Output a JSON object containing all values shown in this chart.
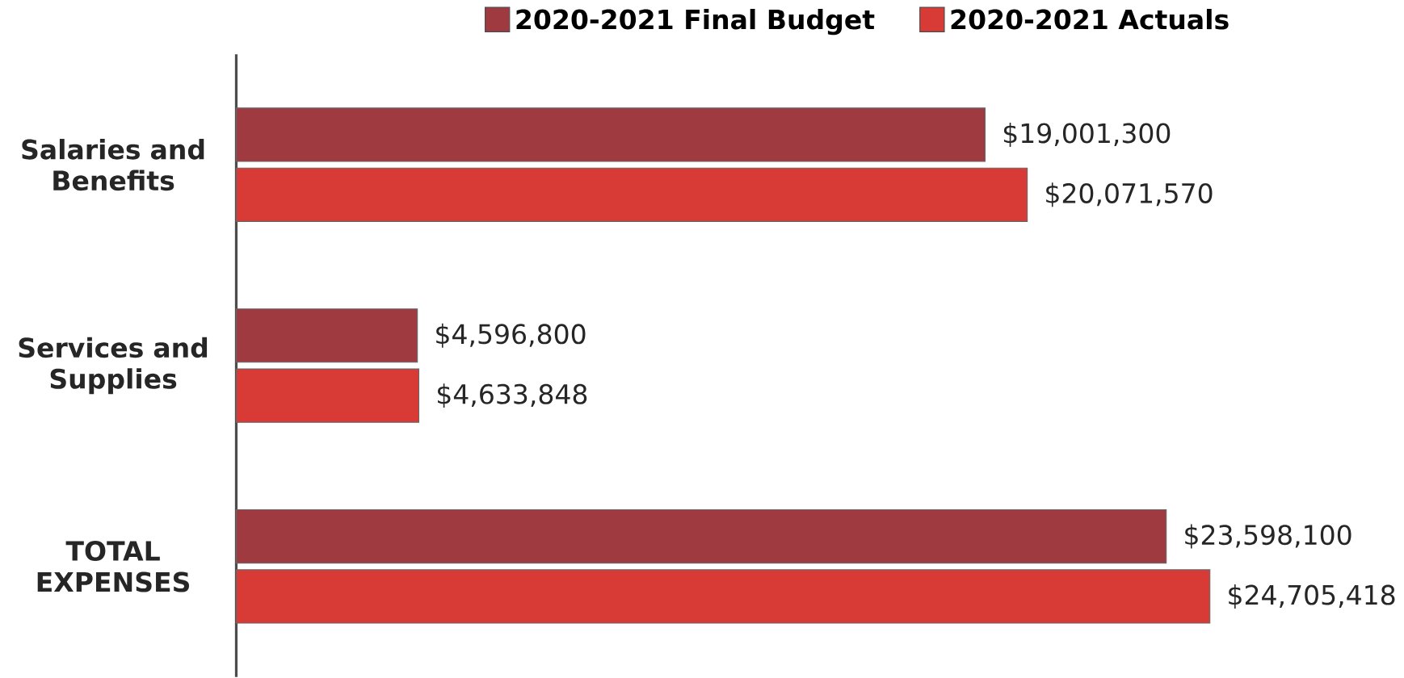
{
  "chart_data": {
    "type": "bar",
    "orientation": "horizontal",
    "categories": [
      "Salaries and Benefits",
      "Services and Supplies",
      "TOTAL EXPENSES"
    ],
    "series": [
      {
        "name": "2020-2021 Final Budget",
        "color": "#9e3a40",
        "values": [
          19001300,
          4596800,
          23598100
        ],
        "value_labels": [
          "$19,001,300",
          "$4,596,800",
          "$23,598,100"
        ]
      },
      {
        "name": "2020-2021 Actuals",
        "color": "#d83a36",
        "values": [
          20071570,
          4633848,
          24705418
        ],
        "value_labels": [
          "$20,071,570",
          "$4,633,848",
          "$24,705,418"
        ]
      }
    ],
    "legend": "top",
    "tick_labels": "y"
  }
}
